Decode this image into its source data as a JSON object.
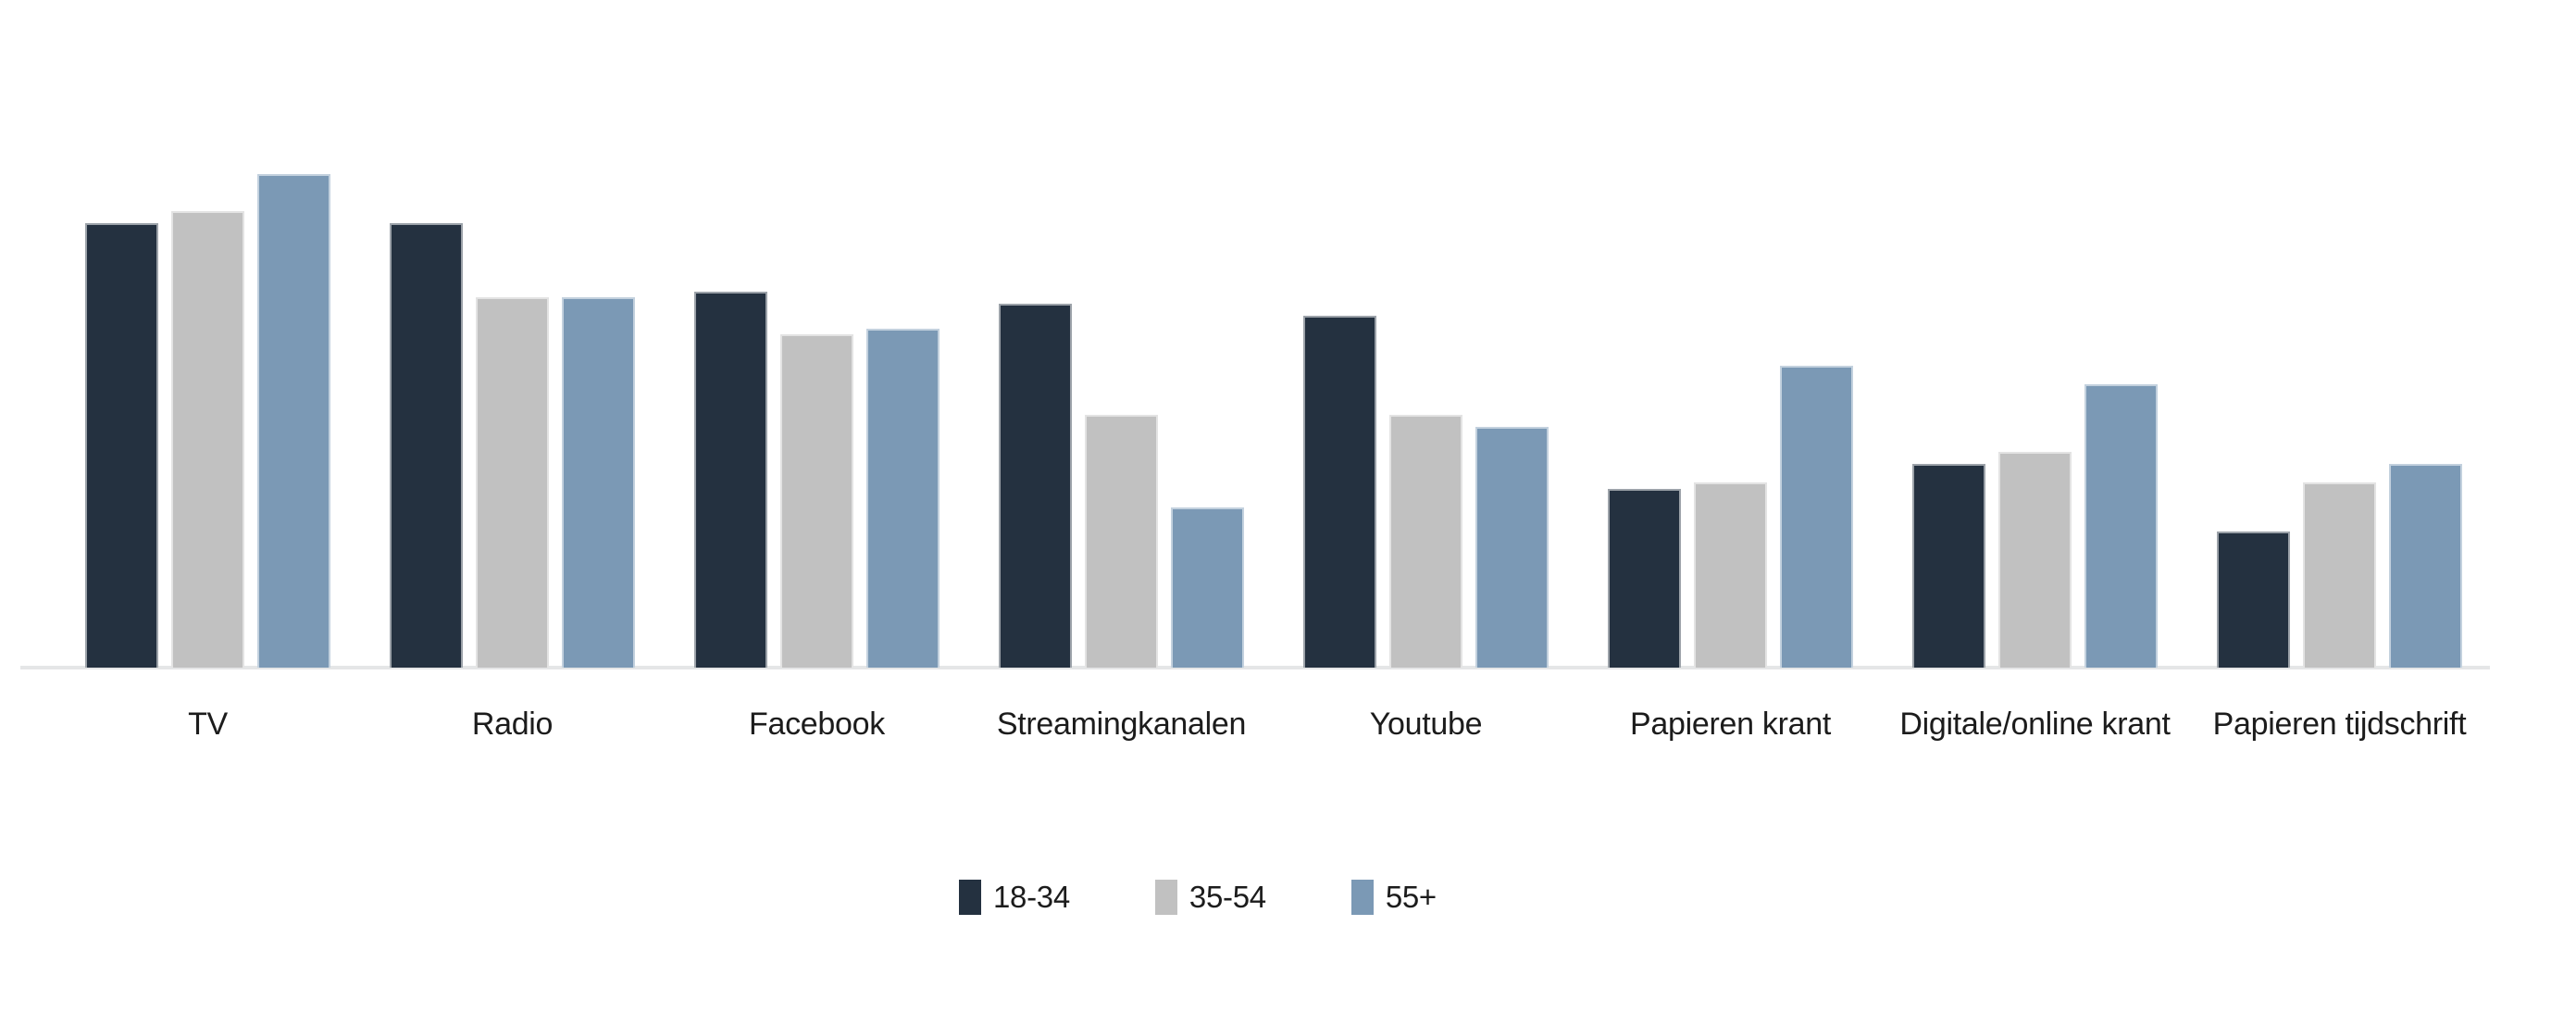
{
  "chart_data": {
    "type": "bar",
    "title": "",
    "xlabel": "",
    "ylabel": "",
    "ylim": [
      0,
      100
    ],
    "grid": false,
    "value_unit": "percent_estimated_no_axis_labels_shown",
    "legend_position": "bottom",
    "categories": [
      "TV",
      "Radio",
      "Facebook",
      "Streamingkanalen",
      "Youtube",
      "Papieren krant",
      "Digitale/online krant",
      "Papieren tijdschrift"
    ],
    "series": [
      {
        "name": "18-34",
        "color": "#243140",
        "values": [
          72,
          72,
          61,
          59,
          57,
          29,
          33,
          22
        ]
      },
      {
        "name": "35-54",
        "color": "#c1c1c1",
        "values": [
          74,
          60,
          54,
          41,
          41,
          30,
          35,
          30
        ]
      },
      {
        "name": "55+",
        "color": "#7b99b5",
        "values": [
          80,
          60,
          55,
          26,
          39,
          49,
          46,
          33
        ]
      }
    ]
  },
  "legend": {
    "items": [
      {
        "label": "18-34",
        "color": "#243140"
      },
      {
        "label": "35-54",
        "color": "#c1c1c1"
      },
      {
        "label": "55+",
        "color": "#7b99b5"
      }
    ]
  },
  "style": {
    "axis_line_color": "#e5e6e7",
    "text_color": "#1c1c1c",
    "background_color": "#ffffff",
    "bar_outline": "rgba(255,255,255,0.55)"
  }
}
